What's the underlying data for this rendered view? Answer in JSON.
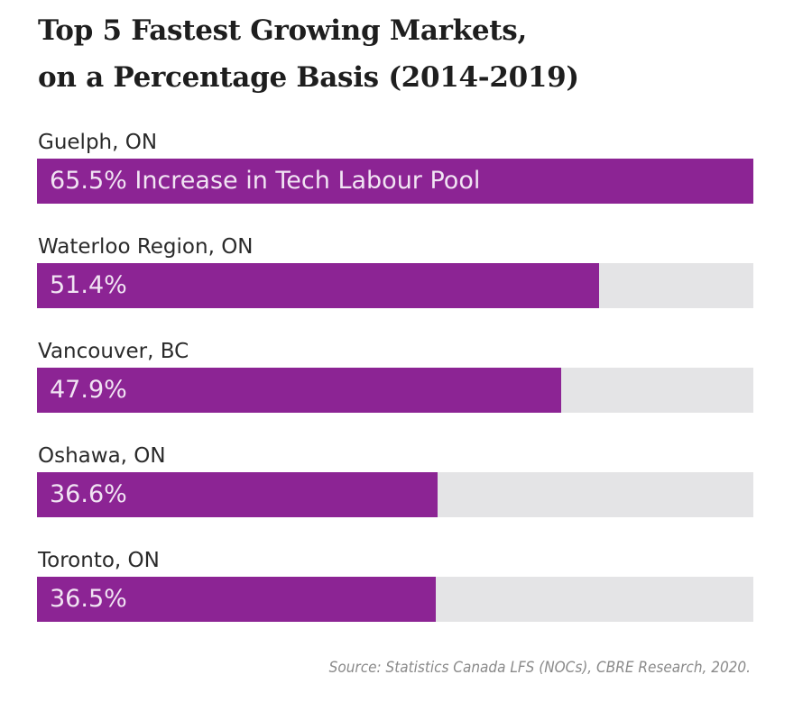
{
  "chart_data": {
    "type": "bar",
    "orientation": "horizontal",
    "title": "Top 5 Fastest Growing Markets, on a Percentage Basis (2014-2019)",
    "title_lines": [
      "Top 5 Fastest Growing Markets,",
      "on a Percentage Basis (2014-2019)"
    ],
    "categories": [
      "Guelph, ON",
      "Waterloo Region, ON",
      "Vancouver, BC",
      "Oshawa, ON",
      "Toronto, ON"
    ],
    "values": [
      65.5,
      51.4,
      47.9,
      36.6,
      36.5
    ],
    "bar_labels": [
      "65.5% Increase in Tech Labour Pool",
      "51.4%",
      "47.9%",
      "36.6%",
      "36.5%"
    ],
    "xlim": [
      0,
      65.5
    ],
    "unit": "%",
    "grid": false,
    "source": "Source: Statistics Canada LFS (NOCs), CBRE Research, 2020.",
    "colors": {
      "bar": "#8c2494",
      "track": "#e4e4e6",
      "bar_text": "#f1e4f3",
      "title": "#1e1e1e",
      "source": "#8a8a8a"
    }
  }
}
